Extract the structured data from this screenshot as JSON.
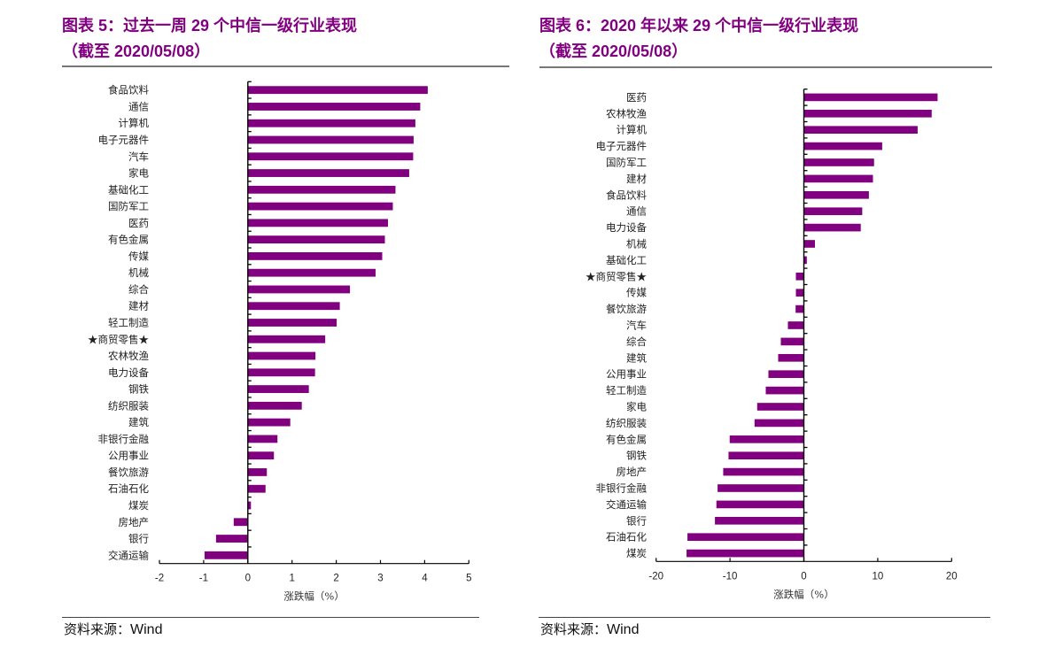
{
  "colors": {
    "bar": "#800080",
    "title": "#800080",
    "axis": "#000000",
    "rule": "#777777"
  },
  "charts": [
    {
      "title_line1": "图表 5：过去一周 29 个中信一级行业表现",
      "title_line2": "（截至 2020/05/08）",
      "source": "资料来源：",
      "source_en": "Wind"
    },
    {
      "title_line1": "图表 6：2020 年以来 29 个中信一级行业表现",
      "title_line2": "（截至 2020/05/08）",
      "source": "资料来源：",
      "source_en": "Wind"
    }
  ],
  "chart_data": [
    {
      "type": "bar",
      "orientation": "horizontal",
      "title": "图表 5：过去一周 29 个中信一级行业表现（截至 2020/05/08）",
      "xlabel": "涨跌幅（%）",
      "ylabel": "",
      "xlim": [
        -2,
        5
      ],
      "xticks": [
        -2,
        -1,
        0,
        1,
        2,
        3,
        4,
        5
      ],
      "grid": false,
      "legend": null,
      "categories": [
        "食品饮料",
        "通信",
        "计算机",
        "电子元器件",
        "汽车",
        "家电",
        "基础化工",
        "国防军工",
        "医药",
        "有色金属",
        "传媒",
        "机械",
        "综合",
        "建材",
        "轻工制造",
        "★商贸零售★",
        "农林牧渔",
        "电力设备",
        "钢铁",
        "纺织服装",
        "建筑",
        "非银行金融",
        "公用事业",
        "餐饮旅游",
        "石油石化",
        "煤炭",
        "房地产",
        "银行",
        "交通运输"
      ],
      "values": [
        4.07,
        3.9,
        3.79,
        3.75,
        3.74,
        3.65,
        3.34,
        3.28,
        3.17,
        3.1,
        3.04,
        2.89,
        2.31,
        2.08,
        2.01,
        1.75,
        1.53,
        1.52,
        1.38,
        1.22,
        0.96,
        0.67,
        0.59,
        0.43,
        0.4,
        0.07,
        -0.32,
        -0.72,
        -0.98
      ],
      "source": "Wind"
    },
    {
      "type": "bar",
      "orientation": "horizontal",
      "title": "图表 6：2020 年以来 29 个中信一级行业表现（截至 2020/05/08）",
      "xlabel": "涨跌幅（%）",
      "ylabel": "",
      "xlim": [
        -20,
        20
      ],
      "xticks": [
        -20,
        -10,
        0,
        10,
        20
      ],
      "grid": false,
      "legend": null,
      "categories": [
        "医药",
        "农林牧渔",
        "计算机",
        "电子元器件",
        "国防军工",
        "建材",
        "食品饮料",
        "通信",
        "电力设备",
        "机械",
        "基础化工",
        "★商贸零售★",
        "传媒",
        "餐饮旅游",
        "汽车",
        "综合",
        "建筑",
        "公用事业",
        "轻工制造",
        "家电",
        "纺织服装",
        "有色金属",
        "钢铁",
        "房地产",
        "非银行金融",
        "交通运输",
        "银行",
        "石油石化",
        "煤炭"
      ],
      "values": [
        18.1,
        17.3,
        15.4,
        10.6,
        9.5,
        9.35,
        8.8,
        7.9,
        7.7,
        1.5,
        0.4,
        -1.08,
        -1.08,
        -1.12,
        -2.16,
        -3.12,
        -3.48,
        -4.8,
        -5.16,
        -6.32,
        -6.68,
        -10.04,
        -10.2,
        -10.92,
        -11.68,
        -11.84,
        -12.04,
        -15.76,
        -15.88
      ],
      "source": "Wind"
    }
  ]
}
